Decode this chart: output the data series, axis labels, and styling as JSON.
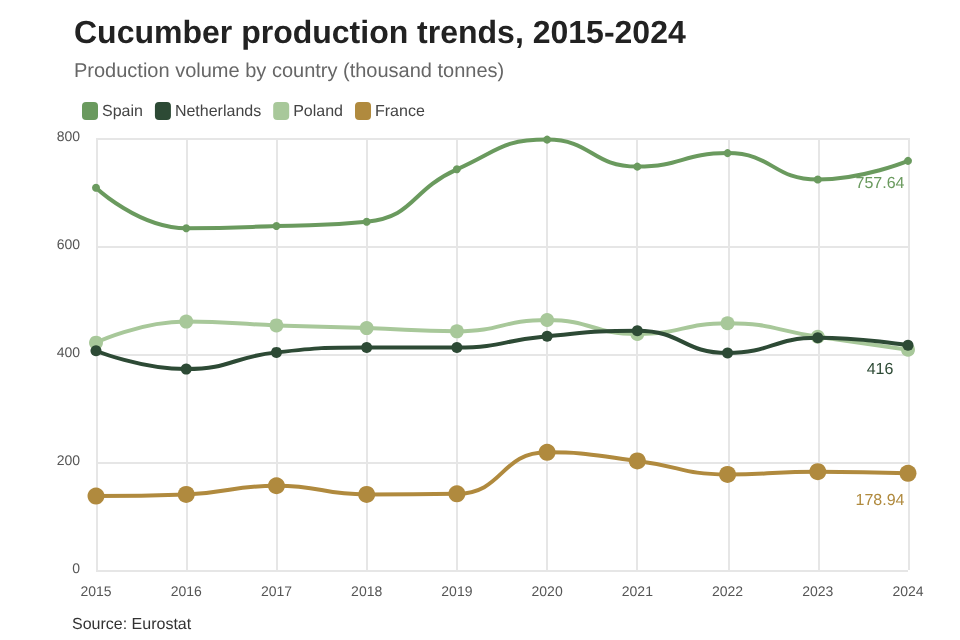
{
  "chart_data": {
    "type": "line",
    "title": "Cucumber production trends, 2015-2024",
    "subtitle": "Production volume by country (thousand tonnes)",
    "categories": [
      "2015",
      "2016",
      "2017",
      "2018",
      "2019",
      "2020",
      "2021",
      "2022",
      "2023",
      "2024"
    ],
    "series": [
      {
        "name": "Spain",
        "color": "#6a9a5e",
        "values": [
          708,
          633,
          637,
          645,
          742,
          797,
          747,
          772,
          723,
          757.64
        ],
        "value_labels": [
          null,
          null,
          null,
          null,
          null,
          null,
          null,
          null,
          null,
          "757.64"
        ]
      },
      {
        "name": "Netherlands",
        "color": "#2d4a35",
        "values": [
          406,
          372,
          403,
          412,
          412,
          433,
          443,
          402,
          430,
          416
        ],
        "value_labels": [
          null,
          null,
          null,
          null,
          null,
          null,
          null,
          null,
          null,
          "416"
        ]
      },
      {
        "name": "Poland",
        "color": "#a8c89a",
        "values": [
          421,
          460,
          453,
          448,
          442,
          463,
          437,
          457,
          432,
          408
        ]
      },
      {
        "name": "France",
        "color": "#b08a3e",
        "values": [
          137,
          140,
          156,
          140,
          141,
          218,
          202,
          177,
          182,
          178.94
        ],
        "value_labels": [
          null,
          null,
          null,
          null,
          null,
          null,
          null,
          null,
          null,
          "178.94"
        ]
      }
    ],
    "ylim": [
      0,
      800
    ],
    "yticks": [
      0,
      200,
      400,
      600,
      800
    ],
    "grid": true,
    "legend": "top left",
    "marker": "circle",
    "line_style": "solid",
    "annotations": [
      "Source: Eurostat"
    ]
  }
}
